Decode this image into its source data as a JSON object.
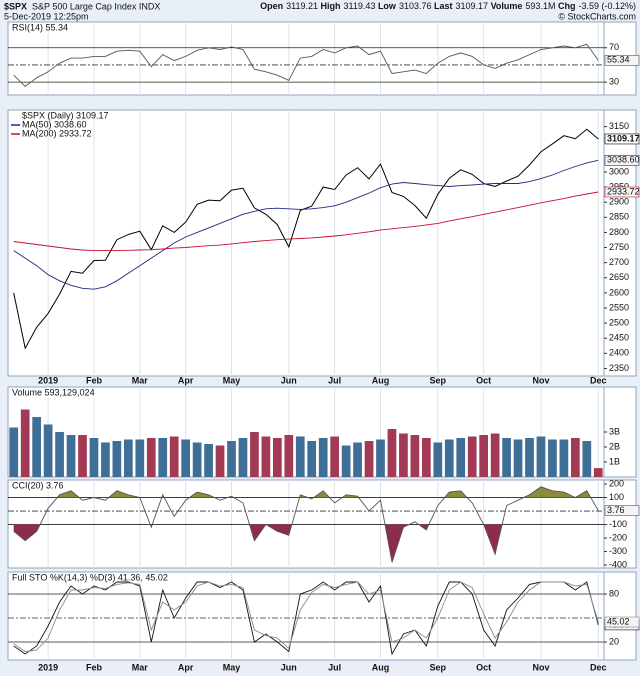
{
  "header": {
    "symbol": "$SPX",
    "name": "S&P 500 Large Cap Index INDX",
    "date": "5-Dec-2019 12:25pm",
    "credit": "© StockCharts.com",
    "quote": [
      {
        "label": "Open",
        "value": 3119.21
      },
      {
        "label": "High",
        "value": 3119.43
      },
      {
        "label": "Low",
        "value": 3103.76
      },
      {
        "label": "Last",
        "value": 3109.17
      },
      {
        "label": "Volume",
        "value": "593.1M"
      },
      {
        "label": "Chg",
        "value": "-3.59 (-0.12%)"
      }
    ]
  },
  "chart_data": [
    {
      "type": "line",
      "title": "RSI(14) 55.34",
      "ylim": [
        15,
        100
      ],
      "yticks": [
        30,
        70
      ],
      "hlines": [
        30,
        70
      ],
      "midline": 50,
      "series": [
        {
          "name": "RSI(14)",
          "color": "#555555",
          "last_label": "55.34",
          "values": [
            38,
            25,
            35,
            42,
            52,
            58,
            58,
            60,
            60,
            66,
            67,
            66,
            48,
            62,
            55,
            60,
            67,
            70,
            68,
            71,
            68,
            45,
            42,
            38,
            32,
            58,
            60,
            68,
            64,
            70,
            72,
            62,
            66,
            40,
            42,
            44,
            40,
            52,
            60,
            64,
            60,
            50,
            46,
            52,
            56,
            62,
            68,
            70,
            72,
            70,
            74,
            55.34
          ]
        }
      ]
    },
    {
      "type": "line",
      "ylim": [
        2325,
        3205
      ],
      "yticks": [
        2350,
        2400,
        2450,
        2500,
        2550,
        2600,
        2650,
        2700,
        2750,
        2800,
        2850,
        2900,
        2950,
        3000,
        3150
      ],
      "categories": [
        null,
        null,
        null,
        "2019",
        null,
        null,
        null,
        "Feb",
        null,
        null,
        null,
        "Mar",
        null,
        null,
        null,
        "Apr",
        null,
        null,
        null,
        "May",
        null,
        null,
        null,
        null,
        "Jun",
        null,
        null,
        null,
        "Jul",
        null,
        null,
        null,
        "Aug",
        null,
        null,
        null,
        null,
        "Sep",
        null,
        null,
        null,
        "Oct",
        null,
        null,
        null,
        null,
        "Nov",
        null,
        null,
        null,
        null,
        "Dec"
      ],
      "series": [
        {
          "name": "$SPX (Daily) 3109.17",
          "color": "#000000",
          "last_label": "3109.17",
          "values": [
            2600,
            2417,
            2486,
            2532,
            2596,
            2671,
            2665,
            2707,
            2708,
            2776,
            2793,
            2804,
            2743,
            2822,
            2800,
            2834,
            2893,
            2907,
            2905,
            2940,
            2946,
            2881,
            2860,
            2826,
            2752,
            2873,
            2887,
            2950,
            2942,
            2990,
            3014,
            2977,
            3026,
            2932,
            2919,
            2889,
            2847,
            2926,
            2979,
            3007,
            2992,
            2962,
            2952,
            2970,
            2986,
            3023,
            3067,
            3093,
            3120,
            3110,
            3141,
            3109.17
          ]
        },
        {
          "name": "MA(50) 3038.60",
          "color": "#1f2a80",
          "last_label": "3038.60",
          "values": [
            2740,
            2715,
            2690,
            2660,
            2640,
            2625,
            2615,
            2612,
            2620,
            2640,
            2665,
            2690,
            2715,
            2740,
            2765,
            2785,
            2800,
            2815,
            2830,
            2845,
            2860,
            2870,
            2878,
            2880,
            2878,
            2876,
            2878,
            2882,
            2888,
            2900,
            2915,
            2930,
            2948,
            2960,
            2965,
            2962,
            2958,
            2955,
            2952,
            2955,
            2957,
            2960,
            2962,
            2962,
            2962,
            2968,
            2978,
            2990,
            3005,
            3018,
            3030,
            3038.6
          ]
        },
        {
          "name": "MA(200) 2933.72",
          "color": "#c8102e",
          "last_label": "2933.72",
          "values": [
            2770,
            2765,
            2760,
            2755,
            2750,
            2745,
            2742,
            2740,
            2740,
            2740,
            2741,
            2742,
            2743,
            2745,
            2748,
            2750,
            2753,
            2756,
            2758,
            2762,
            2766,
            2770,
            2773,
            2776,
            2778,
            2780,
            2782,
            2785,
            2788,
            2792,
            2797,
            2802,
            2808,
            2812,
            2816,
            2820,
            2825,
            2830,
            2838,
            2845,
            2852,
            2860,
            2867,
            2875,
            2882,
            2890,
            2898,
            2905,
            2912,
            2920,
            2927,
            2933.72
          ]
        }
      ]
    },
    {
      "type": "bar",
      "title": "Volume 593,129,024",
      "ylim": [
        0,
        6000000000
      ],
      "yticks": [
        {
          "value": 1000000000,
          "label": "1B"
        },
        {
          "value": 2000000000,
          "label": "2B"
        },
        {
          "value": 3000000000,
          "label": "3B"
        }
      ],
      "up_color": "#3f6e96",
      "down_color": "#a33a55",
      "values": [
        3300000000,
        4500000000,
        4000000000,
        3500000000,
        3000000000,
        2800000000,
        2800000000,
        2600000000,
        2300000000,
        2400000000,
        2500000000,
        2500000000,
        2600000000,
        2600000000,
        2700000000,
        2500000000,
        2300000000,
        2200000000,
        2100000000,
        2400000000,
        2600000000,
        3000000000,
        2700000000,
        2600000000,
        2800000000,
        2700000000,
        2400000000,
        2600000000,
        2700000000,
        2100000000,
        2300000000,
        2400000000,
        2500000000,
        3200000000,
        2900000000,
        2800000000,
        2600000000,
        2300000000,
        2500000000,
        2600000000,
        2700000000,
        2800000000,
        2900000000,
        2600000000,
        2500000000,
        2600000000,
        2700000000,
        2500000000,
        2500000000,
        2600000000,
        2400000000,
        593129024
      ]
    },
    {
      "type": "line",
      "title": "CCI(20) 3.76",
      "ylim": [
        -422,
        230
      ],
      "yticks": [
        200,
        100,
        -100,
        -200,
        -300,
        -400
      ],
      "hlines": [
        100,
        -100
      ],
      "midline": 0,
      "fill_above": "#8c8a3c",
      "fill_below": "#8e2c4e",
      "series": [
        {
          "name": "CCI(20)",
          "color": "#555555",
          "last_label": "3.76",
          "values": [
            -150,
            -220,
            -150,
            20,
            120,
            150,
            80,
            100,
            80,
            150,
            120,
            100,
            -120,
            120,
            -40,
            80,
            140,
            120,
            80,
            110,
            60,
            -220,
            -100,
            -150,
            -180,
            120,
            90,
            150,
            60,
            120,
            110,
            0,
            80,
            -380,
            -120,
            -80,
            -140,
            40,
            140,
            150,
            60,
            -100,
            -320,
            40,
            80,
            120,
            180,
            150,
            140,
            100,
            150,
            3.76
          ]
        }
      ]
    },
    {
      "type": "line",
      "title": "Full STO %K(14,3) %D(3) 41.36, 45.02",
      "ylim": [
        -2.5,
        107.5
      ],
      "yticks": [
        20,
        80
      ],
      "hlines": [
        20,
        80
      ],
      "midline": 50,
      "series": [
        {
          "name": "%K(14,3)",
          "color": "#111111",
          "last_label": "41.36",
          "values": [
            15,
            5,
            15,
            40,
            70,
            90,
            80,
            90,
            85,
            95,
            95,
            90,
            20,
            85,
            50,
            75,
            95,
            95,
            88,
            95,
            85,
            20,
            30,
            20,
            8,
            80,
            85,
            95,
            85,
            95,
            95,
            70,
            90,
            5,
            30,
            35,
            15,
            65,
            95,
            95,
            80,
            35,
            15,
            60,
            75,
            92,
            95,
            95,
            95,
            85,
            95,
            41.36
          ]
        },
        {
          "name": "%D(3)",
          "color": "#8a8a8a",
          "last_label": "45.02",
          "values": [
            18,
            8,
            10,
            25,
            60,
            85,
            85,
            88,
            87,
            92,
            94,
            92,
            35,
            70,
            60,
            70,
            90,
            95,
            90,
            92,
            88,
            35,
            28,
            25,
            12,
            60,
            82,
            92,
            88,
            92,
            95,
            80,
            85,
            20,
            25,
            35,
            25,
            50,
            85,
            95,
            88,
            55,
            25,
            45,
            70,
            85,
            95,
            95,
            95,
            90,
            92,
            45.02
          ]
        }
      ]
    }
  ]
}
